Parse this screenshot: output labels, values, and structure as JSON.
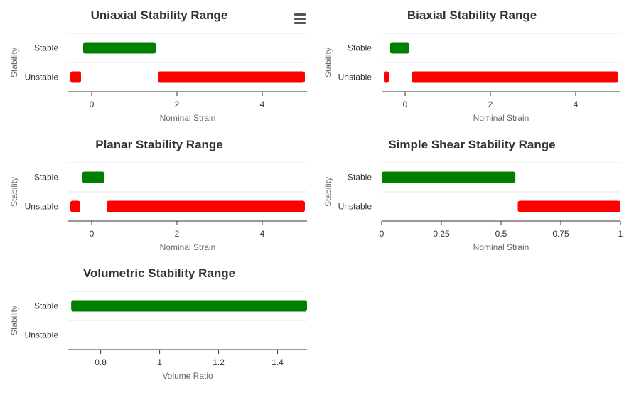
{
  "menu": {
    "icon": "hamburger-menu-icon"
  },
  "colors": {
    "stable": "#008000",
    "unstable": "#ff0000",
    "axis": "#333333",
    "grid": "#e6e6e6",
    "text": "#333333",
    "label": "#666666"
  },
  "chart_data": [
    {
      "type": "bar",
      "orientation": "horizontal-range",
      "title": "Uniaxial Stability Range",
      "xlabel": "Nominal Strain",
      "ylabel": "Stability",
      "categories": [
        "Stable",
        "Unstable"
      ],
      "xlim": [
        -0.55,
        5.05
      ],
      "xticks": [
        0,
        2,
        4
      ],
      "xtick_labels": [
        "0",
        "2",
        "4"
      ],
      "ranges": [
        {
          "category": "Stable",
          "start": -0.2,
          "end": 1.5,
          "status": "stable"
        },
        {
          "category": "Unstable",
          "start": -0.5,
          "end": -0.25,
          "status": "unstable"
        },
        {
          "category": "Unstable",
          "start": 1.55,
          "end": 5.0,
          "status": "unstable"
        }
      ]
    },
    {
      "type": "bar",
      "orientation": "horizontal-range",
      "title": "Biaxial Stability Range",
      "xlabel": "Nominal Strain",
      "ylabel": "Stability",
      "categories": [
        "Stable",
        "Unstable"
      ],
      "xlim": [
        -0.55,
        5.05
      ],
      "xticks": [
        0,
        2,
        4
      ],
      "xtick_labels": [
        "0",
        "2",
        "4"
      ],
      "ranges": [
        {
          "category": "Stable",
          "start": -0.35,
          "end": 0.1,
          "status": "stable"
        },
        {
          "category": "Unstable",
          "start": -0.5,
          "end": -0.38,
          "status": "unstable"
        },
        {
          "category": "Unstable",
          "start": 0.15,
          "end": 5.0,
          "status": "unstable"
        }
      ]
    },
    {
      "type": "bar",
      "orientation": "horizontal-range",
      "title": "Planar Stability Range",
      "xlabel": "Nominal Strain",
      "ylabel": "Stability",
      "categories": [
        "Stable",
        "Unstable"
      ],
      "xlim": [
        -0.55,
        5.05
      ],
      "xticks": [
        0,
        2,
        4
      ],
      "xtick_labels": [
        "0",
        "2",
        "4"
      ],
      "ranges": [
        {
          "category": "Stable",
          "start": -0.22,
          "end": 0.3,
          "status": "stable"
        },
        {
          "category": "Unstable",
          "start": -0.5,
          "end": -0.27,
          "status": "unstable"
        },
        {
          "category": "Unstable",
          "start": 0.35,
          "end": 5.0,
          "status": "unstable"
        }
      ]
    },
    {
      "type": "bar",
      "orientation": "horizontal-range",
      "title": "Simple Shear Stability Range",
      "xlabel": "Nominal Strain",
      "ylabel": "Stability",
      "categories": [
        "Stable",
        "Unstable"
      ],
      "xlim": [
        0,
        1
      ],
      "xticks": [
        0,
        0.25,
        0.5,
        0.75,
        1
      ],
      "xtick_labels": [
        "0",
        "0.25",
        "0.5",
        "0.75",
        "1"
      ],
      "ranges": [
        {
          "category": "Stable",
          "start": 0.0,
          "end": 0.56,
          "status": "stable"
        },
        {
          "category": "Unstable",
          "start": 0.57,
          "end": 1.0,
          "status": "unstable"
        }
      ]
    },
    {
      "type": "bar",
      "orientation": "horizontal-range",
      "title": "Volumetric Stability Range",
      "xlabel": "Volume Ratio",
      "ylabel": "Stability",
      "categories": [
        "Stable",
        "Unstable"
      ],
      "xlim": [
        0.69,
        1.5
      ],
      "xticks": [
        0.8,
        1,
        1.2,
        1.4
      ],
      "xtick_labels": [
        "0.8",
        "1",
        "1.2",
        "1.4"
      ],
      "ranges": [
        {
          "category": "Stable",
          "start": 0.7,
          "end": 1.5,
          "status": "stable"
        }
      ]
    }
  ]
}
